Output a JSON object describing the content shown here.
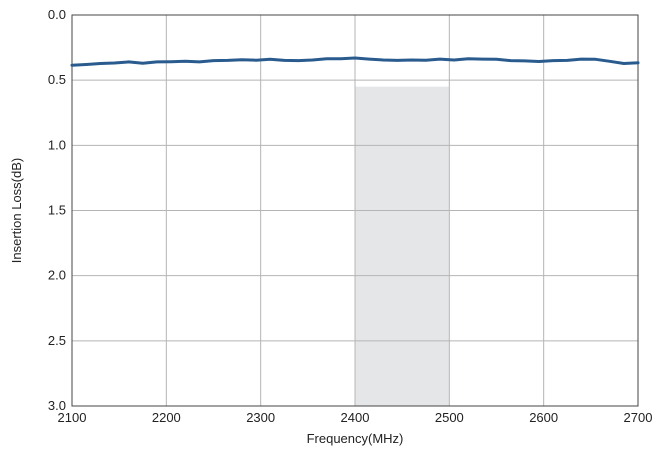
{
  "chart_data": {
    "type": "line",
    "xlabel": "Frequency(MHz)",
    "ylabel": "Insertion Loss(dB)",
    "xlim": [
      2100,
      2700
    ],
    "ylim": [
      0.0,
      3.0
    ],
    "y_inverted": true,
    "grid": true,
    "x_ticks": [
      "2100",
      "2200",
      "2300",
      "2400",
      "2500",
      "2600",
      "2700"
    ],
    "y_ticks": [
      "0.0",
      "0.5",
      "1.0",
      "1.5",
      "2.0",
      "2.5",
      "3.0"
    ],
    "shaded_region": {
      "x_range": [
        2400,
        2500
      ],
      "y_range": [
        0.55,
        3.0
      ],
      "color": "#e5e6e8"
    },
    "series": [
      {
        "color": "#2a5b8f",
        "x": [
          2100,
          2115,
          2130,
          2145,
          2160,
          2175,
          2190,
          2205,
          2220,
          2235,
          2250,
          2265,
          2280,
          2295,
          2310,
          2325,
          2340,
          2355,
          2370,
          2385,
          2400,
          2415,
          2430,
          2445,
          2460,
          2475,
          2490,
          2505,
          2520,
          2535,
          2550,
          2565,
          2580,
          2595,
          2610,
          2625,
          2640,
          2655,
          2670,
          2685,
          2700
        ],
        "y": [
          0.385,
          0.38,
          0.372,
          0.368,
          0.36,
          0.37,
          0.36,
          0.358,
          0.355,
          0.36,
          0.35,
          0.348,
          0.343,
          0.347,
          0.34,
          0.348,
          0.35,
          0.345,
          0.335,
          0.335,
          0.33,
          0.338,
          0.345,
          0.348,
          0.345,
          0.347,
          0.338,
          0.345,
          0.335,
          0.338,
          0.34,
          0.35,
          0.352,
          0.357,
          0.35,
          0.348,
          0.338,
          0.34,
          0.355,
          0.372,
          0.367
        ]
      }
    ]
  }
}
